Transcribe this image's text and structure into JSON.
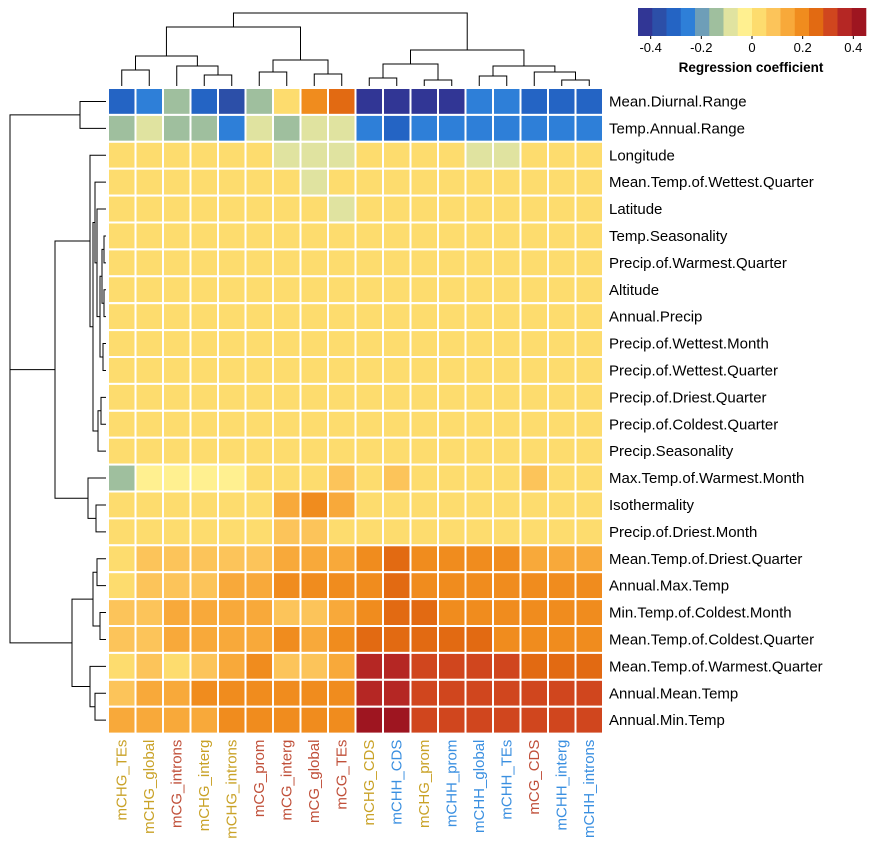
{
  "chart_data": {
    "type": "heatmap",
    "title": "",
    "legend": {
      "title": "Regression coefficient",
      "ticks": [
        "-0.4",
        "-0.2",
        "0",
        "0.2",
        "0.4"
      ],
      "range": [
        -0.45,
        0.45
      ],
      "placement": "top-right"
    },
    "row_dendrogram": true,
    "column_dendrogram": true,
    "columns": [
      {
        "label": "mCHG_TEs",
        "group": "mCHG"
      },
      {
        "label": "mCHG_global",
        "group": "mCHG"
      },
      {
        "label": "mCG_introns",
        "group": "mCG"
      },
      {
        "label": "mCHG_interg",
        "group": "mCHG"
      },
      {
        "label": "mCHG_introns",
        "group": "mCHG"
      },
      {
        "label": "mCG_prom",
        "group": "mCG"
      },
      {
        "label": "mCG_interg",
        "group": "mCG"
      },
      {
        "label": "mCG_global",
        "group": "mCG"
      },
      {
        "label": "mCG_TEs",
        "group": "mCG"
      },
      {
        "label": "mCHG_CDS",
        "group": "mCHG"
      },
      {
        "label": "mCHH_CDS",
        "group": "mCHH"
      },
      {
        "label": "mCHG_prom",
        "group": "mCHG"
      },
      {
        "label": "mCHH_prom",
        "group": "mCHH"
      },
      {
        "label": "mCHH_global",
        "group": "mCHH"
      },
      {
        "label": "mCHH_TEs",
        "group": "mCHH"
      },
      {
        "label": "mCG_CDS",
        "group": "mCG"
      },
      {
        "label": "mCHH_interg",
        "group": "mCHH"
      },
      {
        "label": "mCHH_introns",
        "group": "mCHH"
      }
    ],
    "group_colors": {
      "mCHG": "#C9A227",
      "mCG": "#C0503A",
      "mCHH": "#3A8FE0"
    },
    "rows": [
      "Mean.Diurnal.Range",
      "Temp.Annual.Range",
      "Longitude",
      "Mean.Temp.of.Wettest.Quarter",
      "Latitude",
      "Temp.Seasonality",
      "Precip.of.Warmest.Quarter",
      "Altitude",
      "Annual.Precip",
      "Precip.of.Wettest.Month",
      "Precip.of.Wettest.Quarter",
      "Precip.of.Driest.Quarter",
      "Precip.of.Coldest.Quarter",
      "Precip.Seasonality",
      "Max.Temp.of.Warmest.Month",
      "Isothermality",
      "Precip.of.Driest.Month",
      "Mean.Temp.of.Driest.Quarter",
      "Annual.Max.Temp",
      "Min.Temp.of.Coldest.Month",
      "Mean.Temp.of.Coldest.Quarter",
      "Mean.Temp.of.Warmest.Quarter",
      "Annual.Mean.Temp",
      "Annual.Min.Temp"
    ],
    "values": [
      [
        -0.33,
        -0.28,
        -0.13,
        -0.33,
        -0.38,
        -0.13,
        0.03,
        0.22,
        0.27,
        -0.42,
        -0.42,
        -0.42,
        -0.42,
        -0.27,
        -0.27,
        -0.33,
        -0.33,
        -0.33
      ],
      [
        -0.13,
        -0.07,
        -0.13,
        -0.13,
        -0.27,
        -0.07,
        -0.13,
        -0.07,
        -0.07,
        -0.27,
        -0.33,
        -0.27,
        -0.27,
        -0.27,
        -0.27,
        -0.27,
        -0.27,
        -0.27
      ],
      [
        0.05,
        0.0,
        0.0,
        0.0,
        0.0,
        0.0,
        -0.07,
        -0.07,
        -0.07,
        0.0,
        0.0,
        0.0,
        0.0,
        -0.07,
        -0.07,
        0.0,
        0.0,
        0.0
      ],
      [
        0.0,
        0.05,
        0.0,
        0.05,
        0.05,
        0.0,
        0.0,
        -0.1,
        0.0,
        0.0,
        0.0,
        0.0,
        0.0,
        0.0,
        0.0,
        0.05,
        0.0,
        0.0
      ],
      [
        0.05,
        0.05,
        0.05,
        0.05,
        0.05,
        0.0,
        0.0,
        0.0,
        -0.07,
        0.0,
        0.0,
        0.0,
        0.0,
        0.0,
        0.0,
        0.05,
        0.0,
        0.05
      ],
      [
        0.0,
        0.0,
        0.0,
        0.0,
        0.0,
        0.0,
        0.0,
        0.0,
        0.0,
        0.0,
        0.0,
        0.0,
        0.0,
        0.0,
        0.0,
        0.0,
        0.0,
        0.0
      ],
      [
        0.0,
        0.0,
        0.05,
        0.0,
        0.0,
        0.0,
        0.05,
        0.05,
        0.05,
        0.0,
        0.0,
        0.0,
        0.0,
        0.0,
        0.0,
        0.0,
        0.0,
        0.0
      ],
      [
        0.0,
        0.0,
        0.0,
        0.0,
        0.0,
        0.0,
        0.05,
        0.05,
        0.05,
        0.0,
        0.0,
        0.0,
        0.0,
        0.0,
        0.0,
        0.0,
        0.0,
        0.0
      ],
      [
        0.0,
        0.05,
        0.05,
        0.05,
        0.05,
        0.05,
        0.05,
        0.05,
        0.05,
        0.0,
        0.0,
        0.0,
        0.0,
        0.05,
        0.05,
        0.0,
        0.05,
        0.0
      ],
      [
        0.05,
        0.05,
        0.05,
        0.05,
        0.0,
        0.0,
        0.05,
        0.05,
        0.05,
        0.0,
        0.05,
        0.0,
        0.0,
        0.05,
        0.05,
        0.0,
        0.05,
        0.0
      ],
      [
        0.0,
        0.0,
        0.05,
        0.0,
        0.0,
        0.0,
        0.05,
        0.05,
        0.05,
        0.0,
        0.0,
        0.0,
        0.0,
        0.0,
        0.0,
        0.0,
        0.0,
        0.0
      ],
      [
        0.05,
        0.05,
        0.05,
        0.0,
        0.0,
        0.05,
        0.05,
        0.05,
        0.05,
        0.0,
        0.05,
        0.05,
        0.0,
        0.0,
        0.0,
        0.0,
        0.0,
        0.0
      ],
      [
        0.05,
        0.05,
        0.05,
        0.05,
        0.05,
        0.05,
        0.05,
        0.05,
        0.05,
        0.05,
        0.05,
        0.05,
        0.0,
        0.05,
        0.05,
        0.05,
        0.05,
        0.05
      ],
      [
        0.05,
        0.05,
        0.0,
        0.05,
        0.05,
        0.05,
        0.05,
        0.0,
        0.05,
        0.05,
        0.05,
        0.05,
        0.05,
        0.05,
        0.05,
        0.05,
        0.05,
        0.05
      ],
      [
        -0.13,
        -0.05,
        -0.05,
        -0.05,
        -0.05,
        0.05,
        0.05,
        0.05,
        0.1,
        0.05,
        0.1,
        0.0,
        0.0,
        0.0,
        0.0,
        0.1,
        0.0,
        0.0
      ],
      [
        0.0,
        0.0,
        0.05,
        0.0,
        0.0,
        0.05,
        0.12,
        0.18,
        0.15,
        0.0,
        0.0,
        0.0,
        0.0,
        0.0,
        0.0,
        0.0,
        0.0,
        0.0
      ],
      [
        0.05,
        0.05,
        0.05,
        0.05,
        0.05,
        0.05,
        0.1,
        0.1,
        0.05,
        0.0,
        0.05,
        0.0,
        0.0,
        0.0,
        0.0,
        0.0,
        0.0,
        0.0
      ],
      [
        0.05,
        0.1,
        0.1,
        0.1,
        0.1,
        0.1,
        0.12,
        0.12,
        0.15,
        0.17,
        0.25,
        0.17,
        0.2,
        0.2,
        0.2,
        0.15,
        0.15,
        0.15
      ],
      [
        0.05,
        0.1,
        0.1,
        0.1,
        0.12,
        0.15,
        0.22,
        0.22,
        0.2,
        0.22,
        0.25,
        0.2,
        0.2,
        0.2,
        0.2,
        0.2,
        0.2,
        0.2
      ],
      [
        0.1,
        0.1,
        0.15,
        0.15,
        0.15,
        0.15,
        0.1,
        0.1,
        0.15,
        0.22,
        0.25,
        0.25,
        0.22,
        0.22,
        0.22,
        0.2,
        0.2,
        0.2
      ],
      [
        0.1,
        0.1,
        0.15,
        0.15,
        0.15,
        0.15,
        0.17,
        0.15,
        0.17,
        0.25,
        0.27,
        0.25,
        0.25,
        0.25,
        0.22,
        0.22,
        0.22,
        0.22
      ],
      [
        0.05,
        0.1,
        0.05,
        0.1,
        0.15,
        0.17,
        0.1,
        0.1,
        0.15,
        0.35,
        0.37,
        0.3,
        0.3,
        0.3,
        0.3,
        0.27,
        0.27,
        0.27
      ],
      [
        0.1,
        0.15,
        0.15,
        0.17,
        0.2,
        0.2,
        0.22,
        0.17,
        0.2,
        0.35,
        0.35,
        0.3,
        0.3,
        0.3,
        0.3,
        0.3,
        0.3,
        0.3
      ],
      [
        0.15,
        0.15,
        0.15,
        0.15,
        0.22,
        0.22,
        0.22,
        0.2,
        0.2,
        0.4,
        0.4,
        0.32,
        0.32,
        0.32,
        0.32,
        0.32,
        0.32,
        0.32
      ]
    ]
  },
  "palette": [
    "#313695",
    "#2C4FA8",
    "#2464C4",
    "#2E7FD8",
    "#6E9EB8",
    "#9FBF9E",
    "#E0E3A0",
    "#FFF090",
    "#FDDC6E",
    "#FCC45A",
    "#F8A93A",
    "#F08C1E",
    "#E26A12",
    "#D0461E",
    "#B52724",
    "#9E1520"
  ]
}
